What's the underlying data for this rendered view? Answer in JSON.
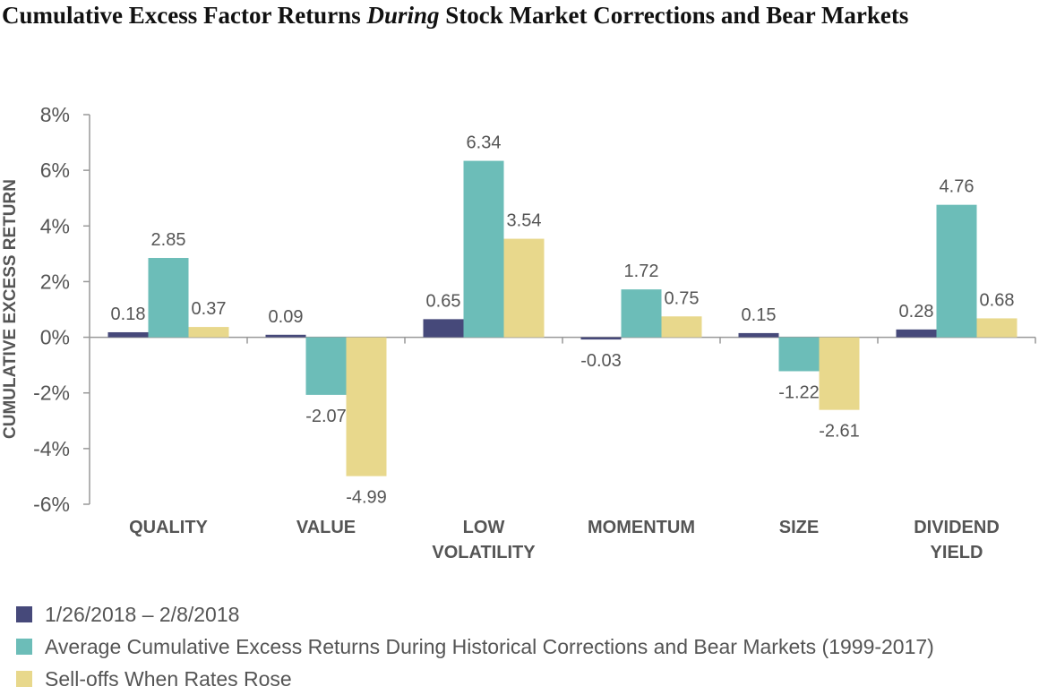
{
  "title": {
    "part1": "Cumulative Excess Factor Returns ",
    "emphasis": "During",
    "part2": " Stock Market Corrections and Bear Markets"
  },
  "chart_data": {
    "type": "bar",
    "ylabel": "CUMULATIVE EXCESS RETURN",
    "ylim": [
      -6,
      8
    ],
    "yticks": [
      8,
      6,
      4,
      2,
      0,
      -2,
      -4,
      -6
    ],
    "ytick_labels": [
      "8%",
      "6%",
      "4%",
      "2%",
      "0%",
      "-2%",
      "-4%",
      "-6%"
    ],
    "categories": [
      [
        "QUALITY"
      ],
      [
        "VALUE"
      ],
      [
        "LOW",
        "VOLATILITY"
      ],
      [
        "MOMENTUM"
      ],
      [
        "SIZE"
      ],
      [
        "DIVIDEND",
        "YIELD"
      ]
    ],
    "series": [
      {
        "name": "1/26/2018 – 2/8/2018",
        "color": "#46497a",
        "values": [
          0.18,
          0.09,
          0.65,
          -0.03,
          0.15,
          0.28
        ]
      },
      {
        "name": "Average Cumulative Excess Returns During Historical Corrections and Bear Markets (1999-2017)",
        "color": "#6cbdb8",
        "values": [
          2.85,
          -2.07,
          6.34,
          1.72,
          -1.22,
          4.76
        ]
      },
      {
        "name": "Sell-offs When Rates Rose",
        "color": "#e8d88c",
        "values": [
          0.37,
          -4.99,
          3.54,
          0.75,
          -2.61,
          0.68
        ]
      }
    ],
    "data_labels": [
      [
        "0.18",
        "0.09",
        "0.65",
        "-0.03",
        "0.15",
        "0.28"
      ],
      [
        "2.85",
        "-2.07",
        "6.34",
        "1.72",
        "-1.22",
        "4.76"
      ],
      [
        "0.37",
        "-4.99",
        "3.54",
        "0.75",
        "-2.61",
        "0.68"
      ]
    ],
    "grid": false,
    "legend_position": "bottom"
  }
}
